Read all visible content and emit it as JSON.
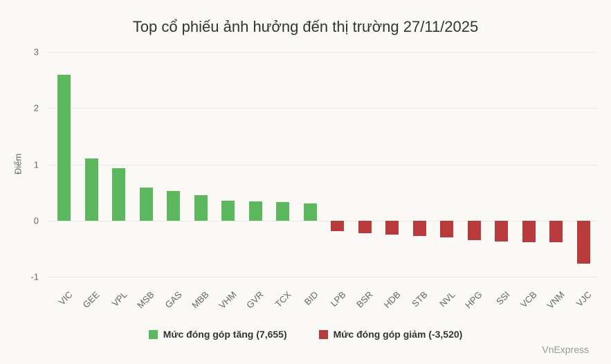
{
  "chart_data": {
    "type": "bar",
    "title": "Top cổ phiếu ảnh hưởng đến thị trường 27/11/2025",
    "xlabel": "",
    "ylabel": "Điểm",
    "ylim": [
      -1,
      3
    ],
    "yticks": [
      "3",
      "2",
      "1",
      "0",
      "-1"
    ],
    "grid": true,
    "legend_position": "bottom",
    "categories": [
      "VIC",
      "GEE",
      "VPL",
      "MSB",
      "GAS",
      "MBB",
      "VHM",
      "GVR",
      "TCX",
      "BID",
      "LPB",
      "BSR",
      "HDB",
      "STB",
      "NVL",
      "HPG",
      "SSI",
      "VCB",
      "VNM",
      "VJC"
    ],
    "values": [
      2.6,
      1.11,
      0.93,
      0.59,
      0.53,
      0.45,
      0.36,
      0.34,
      0.33,
      0.31,
      -0.19,
      -0.22,
      -0.25,
      -0.27,
      -0.3,
      -0.35,
      -0.37,
      -0.38,
      -0.38,
      -0.76
    ],
    "series": [
      {
        "name": "Mức đóng góp tăng (7,655)",
        "color": "#5cb85c",
        "categories": [
          "VIC",
          "GEE",
          "VPL",
          "MSB",
          "GAS",
          "MBB",
          "VHM",
          "GVR",
          "TCX",
          "BID"
        ],
        "values": [
          2.6,
          1.11,
          0.93,
          0.59,
          0.53,
          0.45,
          0.36,
          0.34,
          0.33,
          0.31
        ]
      },
      {
        "name": "Mức đóng góp giảm (-3,520)",
        "color": "#b93a3a",
        "categories": [
          "LPB",
          "BSR",
          "HDB",
          "STB",
          "NVL",
          "HPG",
          "SSI",
          "VCB",
          "VNM",
          "VJC"
        ],
        "values": [
          -0.19,
          -0.22,
          -0.25,
          -0.27,
          -0.3,
          -0.35,
          -0.37,
          -0.38,
          -0.38,
          -0.76
        ]
      }
    ]
  },
  "title": "Top cổ phiếu ảnh hưởng đến thị trường 27/11/2025",
  "ylabel": "Điểm",
  "legend": {
    "up": {
      "label": "Mức đóng góp tăng (7,655)",
      "color": "#5cb85c"
    },
    "down": {
      "label": "Mức đóng góp giảm (-3,520)",
      "color": "#b93a3a"
    }
  },
  "credit": "VnExpress"
}
